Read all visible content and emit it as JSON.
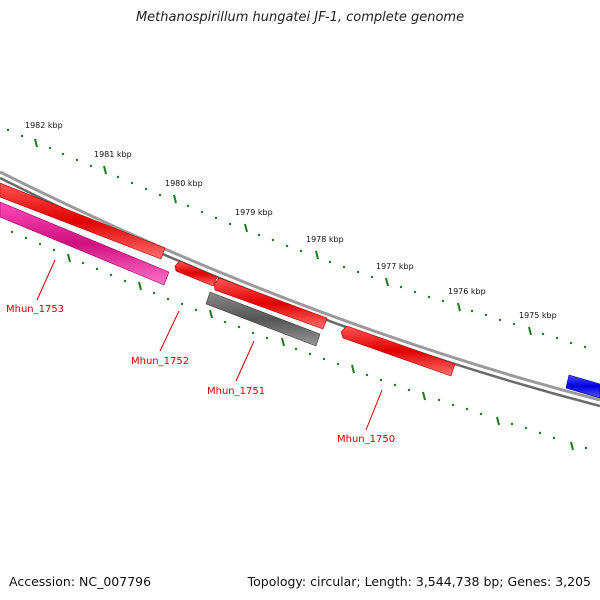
{
  "title": "Methanospirillum hungatei JF-1, complete genome",
  "footer": {
    "accession": "Accession: NC_007796",
    "summary": "Topology: circular; Length: 3,544,738 bp; Genes: 3,205"
  },
  "ruler": {
    "ticks": [
      "1982 kbp",
      "1981 kbp",
      "1980 kbp",
      "1979 kbp",
      "1978 kbp",
      "1977 kbp",
      "1976 kbp",
      "1975 kbp"
    ]
  },
  "genes": [
    {
      "label": "Mhun_1753",
      "color": "#e8169a"
    },
    {
      "label": "Mhun_1752",
      "color": "#ee1111"
    },
    {
      "label": "Mhun_1751",
      "color": "#666666"
    },
    {
      "label": "Mhun_1750",
      "color": "#ee1111"
    }
  ],
  "colors": {
    "backbone": "#808080",
    "tick": "#1e7a1e",
    "label": "#cc0000",
    "forward_gene": "#ee1111",
    "blue_gene": "#1515ee"
  }
}
